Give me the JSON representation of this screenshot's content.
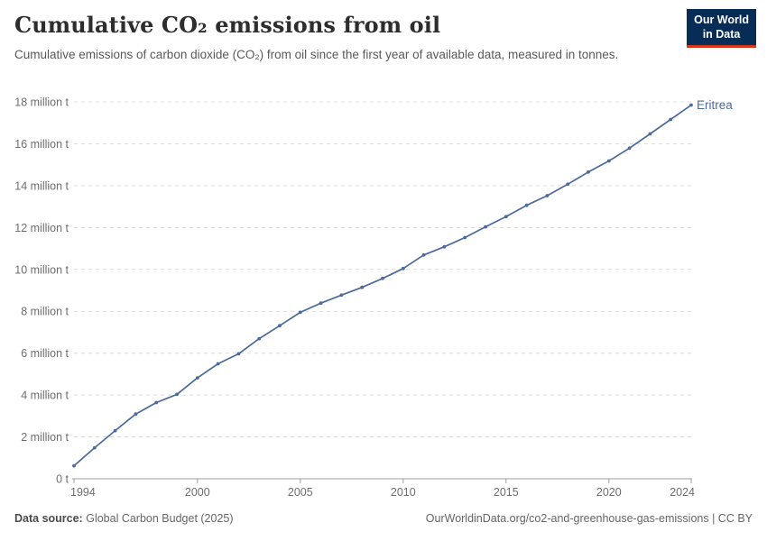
{
  "header": {
    "title": "Cumulative CO₂ emissions from oil",
    "subtitle": "Cumulative emissions of carbon dioxide (CO₂) from oil since the first year of available data, measured in tonnes.",
    "logo": {
      "line1": "Our World",
      "line2": "in Data",
      "bg_color": "#072d57",
      "accent_color": "#dc3418"
    }
  },
  "chart_data": {
    "type": "line",
    "title": "Cumulative CO₂ emissions from oil",
    "xlabel": "",
    "ylabel": "",
    "unit": "million tonnes",
    "xlim": [
      1994,
      2024
    ],
    "ylim": [
      0,
      18
    ],
    "grid": "horizontal-dashed",
    "legend_position": "end-of-line-label",
    "x": [
      1994,
      1995,
      1996,
      1997,
      1998,
      1999,
      2000,
      2001,
      2002,
      2003,
      2004,
      2005,
      2006,
      2007,
      2008,
      2009,
      2010,
      2011,
      2012,
      2013,
      2014,
      2015,
      2016,
      2017,
      2018,
      2019,
      2020,
      2021,
      2022,
      2023,
      2024
    ],
    "series": [
      {
        "name": "Eritrea",
        "color": "#4c6a9c",
        "values": [
          0.62,
          1.48,
          2.3,
          3.09,
          3.64,
          4.03,
          4.82,
          5.49,
          5.97,
          6.69,
          7.31,
          7.95,
          8.39,
          8.77,
          9.14,
          9.57,
          10.04,
          10.69,
          11.08,
          11.52,
          12.03,
          12.52,
          13.06,
          13.52,
          14.07,
          14.65,
          15.18,
          15.79,
          16.47,
          17.16,
          17.85
        ]
      }
    ],
    "yticks": [
      {
        "value": 0,
        "label": "0 t"
      },
      {
        "value": 2,
        "label": "2 million t"
      },
      {
        "value": 4,
        "label": "4 million t"
      },
      {
        "value": 6,
        "label": "6 million t"
      },
      {
        "value": 8,
        "label": "8 million t"
      },
      {
        "value": 10,
        "label": "10 million t"
      },
      {
        "value": 12,
        "label": "12 million t"
      },
      {
        "value": 14,
        "label": "14 million t"
      },
      {
        "value": 16,
        "label": "16 million t"
      },
      {
        "value": 18,
        "label": "18 million t"
      }
    ],
    "xticks": [
      {
        "value": 1994,
        "label": "1994"
      },
      {
        "value": 2000,
        "label": "2000"
      },
      {
        "value": 2005,
        "label": "2005"
      },
      {
        "value": 2010,
        "label": "2010"
      },
      {
        "value": 2015,
        "label": "2015"
      },
      {
        "value": 2020,
        "label": "2020"
      },
      {
        "value": 2024,
        "label": "2024"
      }
    ],
    "entity_label": "Eritrea"
  },
  "footer": {
    "source_label": "Data source:",
    "source_value": "Global Carbon Budget (2025)",
    "link": "OurWorldinData.org/co2-and-greenhouse-gas-emissions | CC BY"
  },
  "colors": {
    "line": "#4c6a9c",
    "grid": "#dcdcdc",
    "axis": "#9e9e9e",
    "tick_text": "#6e6e6e",
    "title_text": "#2d2d2d",
    "subtitle_text": "#595959"
  }
}
